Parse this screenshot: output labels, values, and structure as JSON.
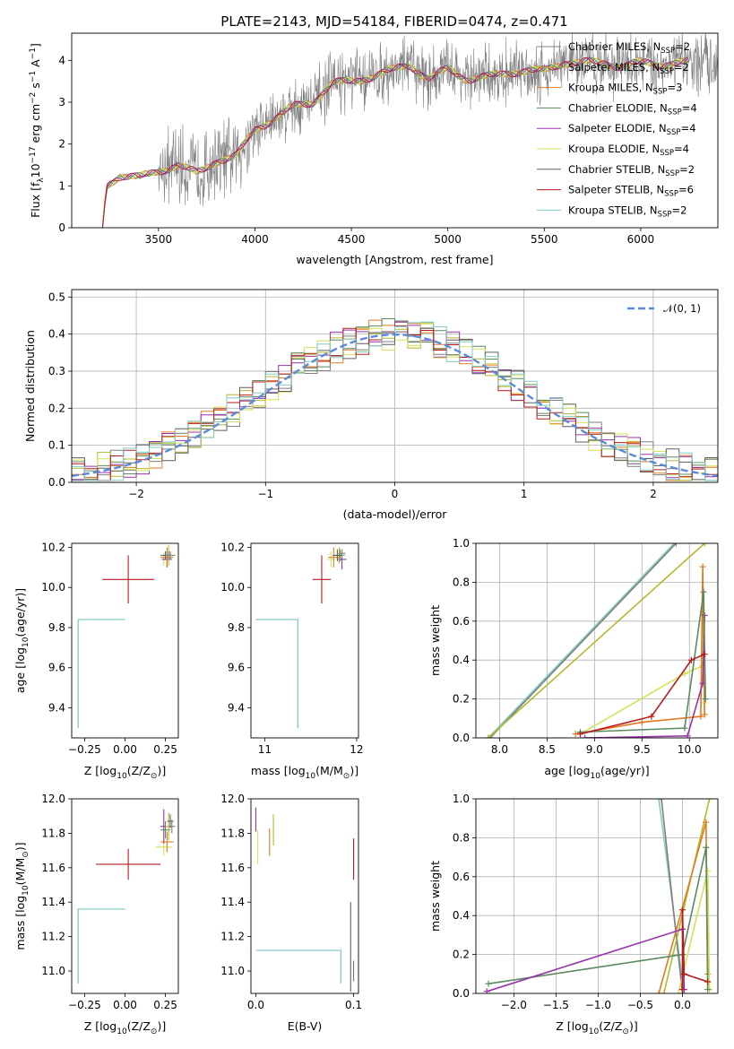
{
  "figure": {
    "title": "PLATE=2143, MJD=54184, FIBERID=0474, z=0.471"
  },
  "models": [
    {
      "label": "Chabrier MILES, N",
      "n": "2",
      "color": "#7f7f7f"
    },
    {
      "label": "Salpeter MILES, N",
      "n": "2",
      "color": "#b5b82c"
    },
    {
      "label": "Kroupa MILES, N",
      "n": "3",
      "color": "#e07a1f"
    },
    {
      "label": "Chabrier ELODIE, N",
      "n": "4",
      "color": "#5a8a5e"
    },
    {
      "label": "Salpeter ELODIE, N",
      "n": "4",
      "color": "#9a30ae"
    },
    {
      "label": "Kroupa ELODIE, N",
      "n": "4",
      "color": "#d4e157"
    },
    {
      "label": "Chabrier STELIB, N",
      "n": "2",
      "color": "#5f5f5f"
    },
    {
      "label": "Salpeter STELIB, N",
      "n": "6",
      "color": "#b71c1c"
    },
    {
      "label": "Kroupa STELIB, N",
      "n": "2",
      "color": "#80cbc4"
    }
  ],
  "legend_sub": "SSP",
  "chart_data": [
    {
      "type": "line",
      "xlabel": "wavelength [Angstrom, rest frame]",
      "ylabel": "Flux [f",
      "ylabel_sub": "λ",
      "ylabel_unit": "10",
      "ylabel_exp": "−17",
      "ylabel_rest": " erg cm",
      "ylabel_exp2": "−2",
      "ylabel_rest2": " s",
      "ylabel_exp3": "−1",
      "ylabel_rest3": " A",
      "ylabel_exp4": "−1",
      "ylabel_end": "]",
      "xlim": [
        3050,
        6400
      ],
      "ylim": [
        0,
        4.65
      ],
      "xticks": [
        "3500",
        "4000",
        "4500",
        "5000",
        "5500",
        "6000"
      ],
      "xtick_values": [
        3500,
        4000,
        4500,
        5000,
        5500,
        6000
      ],
      "yticks": [
        "0",
        "1",
        "2",
        "3",
        "4"
      ],
      "ytick_values": [
        0,
        1,
        2,
        3,
        4
      ],
      "grid": false,
      "legend": "upper right",
      "series_model_x": [
        3210,
        3230,
        3300,
        3400,
        3500,
        3600,
        3700,
        3800,
        3900,
        4000,
        4100,
        4200,
        4300,
        4400,
        4500,
        4600,
        4700,
        4800,
        4900,
        5000,
        5100,
        5200,
        5300,
        5400,
        5500,
        5600,
        5700,
        5800,
        5900,
        6000,
        6100,
        6200
      ],
      "series_model_y": [
        0.02,
        1.0,
        1.25,
        1.2,
        1.35,
        1.5,
        1.3,
        1.6,
        1.7,
        2.35,
        2.6,
        2.9,
        3.0,
        3.45,
        3.5,
        3.6,
        3.75,
        3.9,
        3.55,
        3.8,
        3.55,
        3.6,
        3.7,
        3.75,
        3.75,
        3.95,
        3.95,
        3.95,
        3.85,
        3.95,
        3.9,
        3.95
      ]
    },
    {
      "type": "line",
      "xlabel": "(data-model)/error",
      "ylabel": "Normed distribution",
      "xlim": [
        -2.5,
        2.5
      ],
      "ylim": [
        0,
        0.52
      ],
      "xticks": [
        "−2",
        "−1",
        "0",
        "1",
        "2"
      ],
      "xtick_values": [
        -2,
        -1,
        0,
        1,
        2
      ],
      "yticks": [
        "0.0",
        "0.1",
        "0.2",
        "0.3",
        "0.4",
        "0.5"
      ],
      "ytick_values": [
        0,
        0.1,
        0.2,
        0.3,
        0.4,
        0.5
      ],
      "grid": true,
      "legend": "upper right",
      "gauss_label": "𝒩(0, 1)",
      "hist_bin_width": 0.1,
      "hist_values": [
        0.02,
        0.02,
        0.03,
        0.04,
        0.05,
        0.05,
        0.07,
        0.08,
        0.09,
        0.1,
        0.11,
        0.12,
        0.14,
        0.13,
        0.17,
        0.18,
        0.19,
        0.2,
        0.22,
        0.21,
        0.23,
        0.27,
        0.3,
        0.31,
        0.33,
        0.31,
        0.35,
        0.37,
        0.36,
        0.38,
        0.39,
        0.4,
        0.41,
        0.42,
        0.43,
        0.44,
        0.4,
        0.38,
        0.36,
        0.34,
        0.32,
        0.31,
        0.29,
        0.28,
        0.26,
        0.24,
        0.22,
        0.2,
        0.19,
        0.17
      ],
      "hist_values_right": [
        0.17,
        0.15,
        0.14,
        0.13,
        0.12,
        0.11,
        0.1,
        0.09,
        0.08,
        0.07,
        0.06,
        0.05,
        0.05,
        0.04,
        0.04
      ]
    },
    {
      "type": "scatter",
      "xlabel": "Z [log",
      "xlabel_sub": "10",
      "xlabel_rest": "(Z/Z",
      "xlabel_sub2": "⊙",
      "xlabel_end": ")]",
      "ylabel": "age  [log",
      "ylabel_sub": "10",
      "ylabel_rest": "(age/yr)]",
      "xlim": [
        -0.33,
        0.33
      ],
      "ylim": [
        9.25,
        10.22
      ],
      "xticks": [
        "−0.25",
        "0.00",
        "0.25"
      ],
      "xtick_values": [
        -0.25,
        0,
        0.25
      ],
      "yticks": [
        "9.4",
        "9.6",
        "9.8",
        "10.0",
        "10.2"
      ],
      "ytick_values": [
        9.4,
        9.6,
        9.8,
        10.0,
        10.2
      ]
    },
    {
      "type": "scatter",
      "xlabel": "mass [log",
      "xlabel_sub": "10",
      "xlabel_rest": "(M/M",
      "xlabel_sub2": "⊙",
      "xlabel_end": ")]",
      "xlim": [
        10.85,
        12.02
      ],
      "ylim": [
        9.25,
        10.22
      ],
      "xticks": [
        "11",
        "12"
      ],
      "xtick_values": [
        11,
        12
      ],
      "yticks": [
        "9.4",
        "9.6",
        "9.8",
        "10.0",
        "10.2"
      ],
      "ytick_values": [
        9.4,
        9.6,
        9.8,
        10.0,
        10.2
      ]
    },
    {
      "type": "line",
      "xlabel": "age  [log",
      "xlabel_sub": "10",
      "xlabel_rest": "(age/yr)]",
      "ylabel": "mass weight",
      "xlim": [
        7.75,
        10.3
      ],
      "ylim": [
        0,
        1
      ],
      "xticks": [
        "8.0",
        "8.5",
        "9.0",
        "9.5",
        "10.0"
      ],
      "xtick_values": [
        8.0,
        8.5,
        9.0,
        9.5,
        10.0
      ],
      "yticks": [
        "0.0",
        "0.2",
        "0.4",
        "0.6",
        "0.8",
        "1.0"
      ],
      "ytick_values": [
        0,
        0.2,
        0.4,
        0.6,
        0.8,
        1.0
      ],
      "grid": true
    },
    {
      "type": "scatter",
      "xlabel": "Z [log",
      "xlabel_sub": "10",
      "xlabel_rest": "(Z/Z",
      "xlabel_sub2": "⊙",
      "xlabel_end": ")]",
      "ylabel": "mass [log",
      "ylabel_sub": "10",
      "ylabel_rest": "(M/M",
      "ylabel_sub2": "⊙",
      "ylabel_end": ")]",
      "xlim": [
        -0.33,
        0.33
      ],
      "ylim": [
        10.87,
        12.0
      ],
      "xticks": [
        "−0.25",
        "0.00",
        "0.25"
      ],
      "xtick_values": [
        -0.25,
        0,
        0.25
      ],
      "yticks": [
        "11.0",
        "11.2",
        "11.4",
        "11.6",
        "11.8",
        "12.0"
      ],
      "ytick_values": [
        11.0,
        11.2,
        11.4,
        11.6,
        11.8,
        12.0
      ]
    },
    {
      "type": "scatter",
      "xlabel": "E(B-V)",
      "xlim": [
        -0.005,
        0.105
      ],
      "ylim": [
        10.87,
        12.0
      ],
      "xticks": [
        "0.0",
        "0.1"
      ],
      "xtick_values": [
        0,
        0.1
      ],
      "yticks": [
        "11.0",
        "11.2",
        "11.4",
        "11.6",
        "11.8",
        "12.0"
      ],
      "ytick_values": [
        11.0,
        11.2,
        11.4,
        11.6,
        11.8,
        12.0
      ]
    },
    {
      "type": "line",
      "xlabel": "Z [log",
      "xlabel_sub": "10",
      "xlabel_rest": "(Z/Z",
      "xlabel_sub2": "⊙",
      "xlabel_end": ")]",
      "ylabel": "mass weight",
      "xlim": [
        -2.45,
        0.42
      ],
      "ylim": [
        0,
        1
      ],
      "xticks": [
        "−2.0",
        "−1.5",
        "−1.0",
        "−0.5",
        "0.0"
      ],
      "xtick_values": [
        -2.0,
        -1.5,
        -1.0,
        -0.5,
        0.0
      ],
      "yticks": [
        "0.0",
        "0.2",
        "0.4",
        "0.6",
        "0.8",
        "1.0"
      ],
      "ytick_values": [
        0,
        0.2,
        0.4,
        0.6,
        0.8,
        1.0
      ],
      "grid": true
    }
  ],
  "points": {
    "age_Z": [
      {
        "m": 7,
        "x": 0.02,
        "y": 10.04,
        "xe": 0.16,
        "ye": 0.12
      },
      {
        "m": 5,
        "x": 0.24,
        "y": 10.14,
        "xe": 0.02,
        "ye": 0.03
      },
      {
        "m": 4,
        "x": 0.26,
        "y": 10.14,
        "xe": 0.03,
        "ye": 0.04
      },
      {
        "m": 2,
        "x": 0.26,
        "y": 10.15,
        "xe": 0.04,
        "ye": 0.05
      },
      {
        "m": 3,
        "x": 0.28,
        "y": 10.16,
        "xe": 0.03,
        "ye": 0.02
      },
      {
        "m": 1,
        "x": 0.27,
        "y": 10.16,
        "xe": 0.02,
        "ye": 0.05
      },
      {
        "m": 6,
        "x": 0.25,
        "y": 10.16,
        "xe": 0.03,
        "ye": 0.02
      },
      {
        "m": 8,
        "x": -0.29,
        "y": 9.84,
        "xe": 0.0,
        "ye": 0.0
      },
      {
        "m": 0,
        "x": 0.27,
        "y": 10.16,
        "xe": 0.02,
        "ye": 0.02
      }
    ],
    "age_mass": [
      {
        "m": 7,
        "x": 11.62,
        "y": 10.04,
        "xe": 0.1,
        "ye": 0.12
      },
      {
        "m": 5,
        "x": 11.72,
        "y": 10.14,
        "xe": 0.04,
        "ye": 0.04
      },
      {
        "m": 4,
        "x": 11.84,
        "y": 10.14,
        "xe": 0.05,
        "ye": 0.05
      },
      {
        "m": 2,
        "x": 11.75,
        "y": 10.15,
        "xe": 0.06,
        "ye": 0.05
      },
      {
        "m": 3,
        "x": 11.82,
        "y": 10.16,
        "xe": 0.05,
        "ye": 0.03
      },
      {
        "m": 1,
        "x": 11.81,
        "y": 10.16,
        "xe": 0.05,
        "ye": 0.04
      },
      {
        "m": 6,
        "x": 11.79,
        "y": 10.16,
        "xe": 0.05,
        "ye": 0.03
      },
      {
        "m": 8,
        "x": 11.36,
        "y": 9.84,
        "xe": 0.0,
        "ye": 0.0
      },
      {
        "m": 0,
        "x": 11.84,
        "y": 10.17,
        "xe": 0.04,
        "ye": 0.02
      }
    ],
    "mass_Z": [
      {
        "m": 7,
        "x": 0.02,
        "y": 11.62,
        "xe": 0.2,
        "ye": 0.09
      },
      {
        "m": 5,
        "x": 0.24,
        "y": 11.72,
        "xe": 0.05,
        "ye": 0.05
      },
      {
        "m": 4,
        "x": 0.24,
        "y": 11.84,
        "xe": 0.02,
        "ye": 0.1
      },
      {
        "m": 2,
        "x": 0.26,
        "y": 11.75,
        "xe": 0.04,
        "ye": 0.06
      },
      {
        "m": 3,
        "x": 0.25,
        "y": 11.82,
        "xe": 0.03,
        "ye": 0.05
      },
      {
        "m": 1,
        "x": 0.27,
        "y": 11.84,
        "xe": 0.02,
        "ye": 0.08
      },
      {
        "m": 6,
        "x": 0.28,
        "y": 11.87,
        "xe": 0.02,
        "ye": 0.04
      },
      {
        "m": 8,
        "x": -0.29,
        "y": 11.36,
        "xe": 0.0,
        "ye": 0.0
      },
      {
        "m": 0,
        "x": 0.29,
        "y": 11.84,
        "xe": 0.02,
        "ye": 0.04
      }
    ],
    "mass_ebv": [
      {
        "m": 7,
        "x": 0.1,
        "y": 11.65,
        "ye": 0.12
      },
      {
        "m": 4,
        "x": 0.0,
        "y": 11.88,
        "ye": 0.07
      },
      {
        "m": 5,
        "x": 0.002,
        "y": 11.72,
        "ye": 0.1
      },
      {
        "m": 2,
        "x": 0.014,
        "y": 11.75,
        "ye": 0.08
      },
      {
        "m": 1,
        "x": 0.018,
        "y": 11.82,
        "ye": 0.09
      },
      {
        "m": 8,
        "x": 0.087,
        "y": 11.12,
        "ye": 0.24
      },
      {
        "m": 6,
        "x": 0.097,
        "y": 11.14,
        "ye": 0.26
      },
      {
        "m": 3,
        "x": 0.1,
        "y": 11.0,
        "ye": 0.06
      }
    ]
  }
}
